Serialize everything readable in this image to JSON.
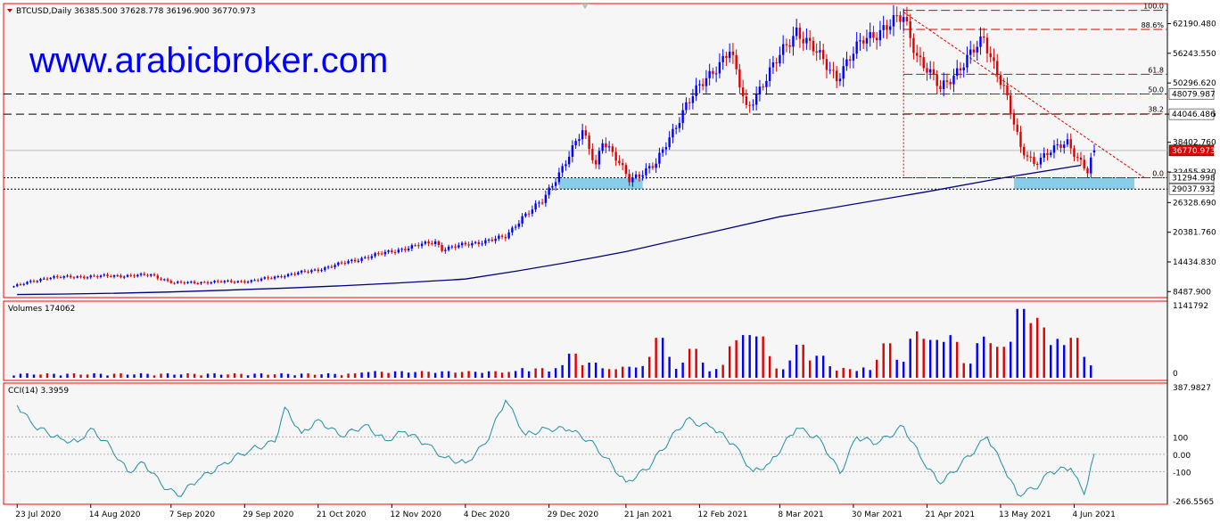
{
  "header": {
    "symbol_line": "BTCUSD,Daily  36385.500 37628.778 36196.900 36770.973",
    "watermark": "www.arabicbroker.com"
  },
  "colors": {
    "bull": "#0000ff",
    "bear": "#e00000",
    "ma": "#000080",
    "cci": "#1f8ea8",
    "zone": "#87cde8",
    "frame": "#ff0000"
  },
  "chart_data": [
    {
      "type": "candlestick",
      "title": "BTCUSD,Daily",
      "ohlc_current": {
        "open": 36385.5,
        "high": 37628.778,
        "low": 36196.9,
        "close": 36770.973
      },
      "price_axis_ticks": [
        "62190.480",
        "56243.550",
        "50296.620",
        "44046.486",
        "38402.760",
        "32455.830",
        "26328.690",
        "20381.760",
        "14434.830",
        "8487.900"
      ],
      "date_labels": [
        "23 Jul 2020",
        "14 Aug 2020",
        "7 Sep 2020",
        "29 Sep 2020",
        "21 Oct 2020",
        "12 Nov 2020",
        "4 Dec 2020",
        "29 Dec 2020",
        "21 Jan 2021",
        "12 Feb 2021",
        "8 Mar 2021",
        "30 Mar 2021",
        "21 Apr 2021",
        "13 May 2021",
        "4 Jun 2021"
      ],
      "horizontal_levels": [
        {
          "label": "48079.987",
          "value": 48079.987,
          "style": "dashed"
        },
        {
          "label": "44046.486",
          "value": 44046.486,
          "style": "dashed"
        },
        {
          "label": "31294.998",
          "value": 31294.998,
          "style": "dotted"
        },
        {
          "label": "29037.932",
          "value": 29037.932,
          "style": "dotted"
        }
      ],
      "current_price_label": "36770.973",
      "fibonacci": {
        "high": 64863,
        "low": 31294.998,
        "levels": [
          {
            "label": "100.0",
            "ratio": 1.0
          },
          {
            "label": "88.6%",
            "ratio": 0.886
          },
          {
            "label": "61.8",
            "ratio": 0.618
          },
          {
            "label": "50.0",
            "ratio": 0.5
          },
          {
            "label": "38.2",
            "ratio": 0.382
          },
          {
            "label": "0.0",
            "ratio": 0.0
          }
        ]
      },
      "trendline": {
        "from": {
          "date": "14 Apr 2021",
          "value": 64500
        },
        "to": {
          "date": "25 Jun 2021",
          "value": 31300
        }
      },
      "support_zones": [
        {
          "from": "1 Jan 2021",
          "to": "26 Jan 2021",
          "value_low": 29000,
          "value_high": 31200
        },
        {
          "from": "17 May 2021",
          "to": "22 Jun 2021",
          "value_low": 29000,
          "value_high": 31200
        }
      ],
      "moving_average_anchors": [
        {
          "date": "23 Jul 2020",
          "value": 7900
        },
        {
          "date": "29 Sep 2020",
          "value": 8900
        },
        {
          "date": "4 Dec 2020",
          "value": 11000
        },
        {
          "date": "21 Jan 2021",
          "value": 16500
        },
        {
          "date": "8 Mar 2021",
          "value": 23500
        },
        {
          "date": "21 Apr 2021",
          "value": 28500
        },
        {
          "date": "13 May 2021",
          "value": 31200
        },
        {
          "date": "6 Jun 2021",
          "value": 33800
        }
      ],
      "price_path": [
        {
          "date": "20 Jul 2020",
          "value": 9200
        },
        {
          "date": "1 Aug 2020",
          "value": 11300
        },
        {
          "date": "1 Sep 2020",
          "value": 11800
        },
        {
          "date": "8 Sep 2020",
          "value": 10200
        },
        {
          "date": "1 Oct 2020",
          "value": 10600
        },
        {
          "date": "21 Oct 2020",
          "value": 12900
        },
        {
          "date": "5 Nov 2020",
          "value": 15500
        },
        {
          "date": "25 Nov 2020",
          "value": 18500
        },
        {
          "date": "27 Nov 2020",
          "value": 17000
        },
        {
          "date": "16 Dec 2020",
          "value": 19400
        },
        {
          "date": "21 Dec 2020",
          "value": 23500
        },
        {
          "date": "27 Dec 2020",
          "value": 26500
        },
        {
          "date": "8 Jan 2021",
          "value": 40500
        },
        {
          "date": "12 Jan 2021",
          "value": 34000
        },
        {
          "date": "14 Jan 2021",
          "value": 39000
        },
        {
          "date": "22 Jan 2021",
          "value": 31000
        },
        {
          "date": "30 Jan 2021",
          "value": 34000
        },
        {
          "date": "8 Feb 2021",
          "value": 46000
        },
        {
          "date": "21 Feb 2021",
          "value": 57000
        },
        {
          "date": "26 Feb 2021",
          "value": 45000
        },
        {
          "date": "13 Mar 2021",
          "value": 61000
        },
        {
          "date": "25 Mar 2021",
          "value": 51500
        },
        {
          "date": "2 Apr 2021",
          "value": 59000
        },
        {
          "date": "14 Apr 2021",
          "value": 63500
        },
        {
          "date": "18 Apr 2021",
          "value": 56000
        },
        {
          "date": "25 Apr 2021",
          "value": 49000
        },
        {
          "date": "8 May 2021",
          "value": 59000
        },
        {
          "date": "14 May 2021",
          "value": 49500
        },
        {
          "date": "19 May 2021",
          "value": 37000
        },
        {
          "date": "23 May 2021",
          "value": 34500
        },
        {
          "date": "2 Jun 2021",
          "value": 38500
        },
        {
          "date": "8 Jun 2021",
          "value": 32500
        },
        {
          "date": "10 Jun 2021",
          "value": 36770
        }
      ]
    },
    {
      "type": "bar",
      "title": "Volumes 174062",
      "axis_ticks": [
        "1141792",
        "0"
      ],
      "max_value": 1141792,
      "events": [
        {
          "date": "5 Jan 2021",
          "value": 0.35
        },
        {
          "date": "11 Jan 2021",
          "value": 0.22
        },
        {
          "date": "21 Jan 2021",
          "value": 0.16
        },
        {
          "date": "27 Jan 2021",
          "value": 0.17
        },
        {
          "date": "31 Jan 2021",
          "value": 0.58
        },
        {
          "date": "10 Feb 2021",
          "value": 0.42
        },
        {
          "date": "23 Feb 2021",
          "value": 0.5
        },
        {
          "date": "26 Feb 2021",
          "value": 0.62
        },
        {
          "date": "2 Mar 2021",
          "value": 0.6
        },
        {
          "date": "14 Mar 2021",
          "value": 0.48
        },
        {
          "date": "20 Mar 2021",
          "value": 0.32
        },
        {
          "date": "9 Apr 2021",
          "value": 0.5
        },
        {
          "date": "18 Apr 2021",
          "value": 0.62
        },
        {
          "date": "23 Apr 2021",
          "value": 0.55
        },
        {
          "date": "28 Apr 2021",
          "value": 0.57
        },
        {
          "date": "8 May 2021",
          "value": 0.55
        },
        {
          "date": "13 May 2021",
          "value": 0.45
        },
        {
          "date": "19 May 2021",
          "value": 1.0
        },
        {
          "date": "22 May 2021",
          "value": 0.73
        },
        {
          "date": "24 May 2021",
          "value": 0.8
        },
        {
          "date": "30 May 2021",
          "value": 0.52
        },
        {
          "date": "4 Jun 2021",
          "value": 0.58
        },
        {
          "date": "8 Jun 2021",
          "value": 0.18
        }
      ]
    },
    {
      "type": "line",
      "title": "CCI(14) 3.3959",
      "axis_ticks": [
        "387.9827",
        "100",
        "0.00",
        "-100",
        "-266.5565"
      ],
      "ylim": [
        -266.5565,
        387.9827
      ],
      "levels": [
        100,
        0,
        -100
      ],
      "points": [
        {
          "date": "23 Jul 2020",
          "value": 280
        },
        {
          "date": "28 Jul 2020",
          "value": 160
        },
        {
          "date": "5 Aug 2020",
          "value": 90
        },
        {
          "date": "10 Aug 2020",
          "value": 70
        },
        {
          "date": "14 Aug 2020",
          "value": 150
        },
        {
          "date": "20 Aug 2020",
          "value": 40
        },
        {
          "date": "25 Aug 2020",
          "value": -100
        },
        {
          "date": "30 Aug 2020",
          "value": -50
        },
        {
          "date": "4 Sep 2020",
          "value": -170
        },
        {
          "date": "9 Sep 2020",
          "value": -240
        },
        {
          "date": "15 Sep 2020",
          "value": -150
        },
        {
          "date": "22 Sep 2020",
          "value": -60
        },
        {
          "date": "1 Oct 2020",
          "value": 30
        },
        {
          "date": "8 Oct 2020",
          "value": 70
        },
        {
          "date": "11 Oct 2020",
          "value": 270
        },
        {
          "date": "16 Oct 2020",
          "value": 120
        },
        {
          "date": "21 Oct 2020",
          "value": 200
        },
        {
          "date": "28 Oct 2020",
          "value": 100
        },
        {
          "date": "4 Nov 2020",
          "value": 170
        },
        {
          "date": "10 Nov 2020",
          "value": 80
        },
        {
          "date": "16 Nov 2020",
          "value": 130
        },
        {
          "date": "22 Nov 2020",
          "value": 60
        },
        {
          "date": "28 Nov 2020",
          "value": -20
        },
        {
          "date": "4 Dec 2020",
          "value": -50
        },
        {
          "date": "10 Dec 2020",
          "value": 60
        },
        {
          "date": "16 Dec 2020",
          "value": 310
        },
        {
          "date": "22 Dec 2020",
          "value": 110
        },
        {
          "date": "28 Dec 2020",
          "value": 150
        },
        {
          "date": "4 Jan 2021",
          "value": 140
        },
        {
          "date": "10 Jan 2021",
          "value": 80
        },
        {
          "date": "15 Jan 2021",
          "value": -20
        },
        {
          "date": "21 Jan 2021",
          "value": -160
        },
        {
          "date": "27 Jan 2021",
          "value": -90
        },
        {
          "date": "3 Feb 2021",
          "value": 80
        },
        {
          "date": "8 Feb 2021",
          "value": 200
        },
        {
          "date": "16 Feb 2021",
          "value": 150
        },
        {
          "date": "22 Feb 2021",
          "value": 60
        },
        {
          "date": "28 Feb 2021",
          "value": -100
        },
        {
          "date": "5 Mar 2021",
          "value": -50
        },
        {
          "date": "13 Mar 2021",
          "value": 150
        },
        {
          "date": "20 Mar 2021",
          "value": 90
        },
        {
          "date": "26 Mar 2021",
          "value": -110
        },
        {
          "date": "31 Mar 2021",
          "value": 100
        },
        {
          "date": "6 Apr 2021",
          "value": 60
        },
        {
          "date": "14 Apr 2021",
          "value": 160
        },
        {
          "date": "20 Apr 2021",
          "value": -50
        },
        {
          "date": "25 Apr 2021",
          "value": -170
        },
        {
          "date": "1 May 2021",
          "value": -60
        },
        {
          "date": "9 May 2021",
          "value": 100
        },
        {
          "date": "14 May 2021",
          "value": -80
        },
        {
          "date": "18 May 2021",
          "value": -230
        },
        {
          "date": "23 May 2021",
          "value": -200
        },
        {
          "date": "28 May 2021",
          "value": -100
        },
        {
          "date": "3 Jun 2021",
          "value": -80
        },
        {
          "date": "7 Jun 2021",
          "value": -230
        },
        {
          "date": "10 Jun 2021",
          "value": 3.3959
        }
      ]
    }
  ]
}
